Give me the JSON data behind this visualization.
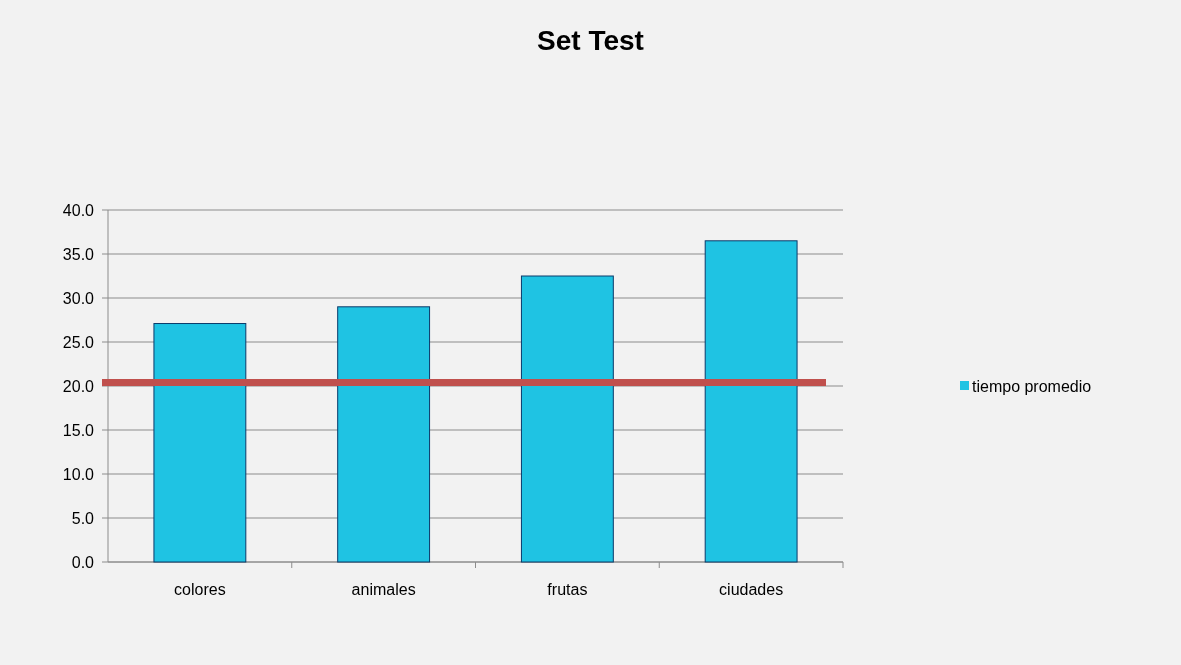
{
  "chart_data": {
    "type": "bar",
    "title": "Set Test",
    "categories": [
      "colores",
      "animales",
      "frutas",
      "ciudades"
    ],
    "series": [
      {
        "name": "tiempo promedio",
        "color": "#1fc3e3",
        "values": [
          27.1,
          29.0,
          32.5,
          36.5
        ]
      }
    ],
    "ylim": [
      0,
      40
    ],
    "yticks": [
      {
        "value": 0,
        "label": "0.0"
      },
      {
        "value": 5,
        "label": "5.0"
      },
      {
        "value": 10,
        "label": "10.0"
      },
      {
        "value": 15,
        "label": "15.0"
      },
      {
        "value": 20,
        "label": "20.0"
      },
      {
        "value": 25,
        "label": "25.0"
      },
      {
        "value": 30,
        "label": "30.0"
      },
      {
        "value": 35,
        "label": "35.0"
      },
      {
        "value": 40,
        "label": "40.0"
      }
    ],
    "grid": "y",
    "legend": "right",
    "ref_lines": [
      {
        "axis": "y",
        "value": 20.4,
        "color": "#c0504d"
      }
    ]
  }
}
